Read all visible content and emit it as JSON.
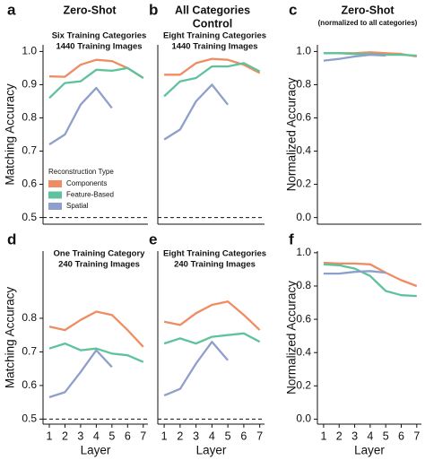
{
  "chart_data": [
    {
      "type": "line",
      "panel": "a",
      "title": [
        "Zero-Shot"
      ],
      "subtitle": [
        "Six Training Categories",
        "1440 Training Images"
      ],
      "ylabel": "Matching Accuracy",
      "x": [
        1,
        2,
        3,
        4,
        5,
        6,
        7
      ],
      "xlim": [
        0.6,
        7.3
      ],
      "ylim": [
        0.48,
        1.02
      ],
      "yticks": [
        0.5,
        0.6,
        0.7,
        0.8,
        0.9,
        {
          "value": 1.0,
          "label": "1.0"
        }
      ],
      "reference_line": 0.5,
      "legend_title": "Reconstruction Type",
      "legend": "center-left",
      "series": [
        {
          "name": "Components",
          "color": "#f08c62",
          "values": [
            0.925,
            0.924,
            0.96,
            0.975,
            0.971,
            0.95,
            0.92
          ]
        },
        {
          "name": "Feature-Based",
          "color": "#5ec39c",
          "values": [
            0.86,
            0.905,
            0.91,
            0.945,
            0.942,
            0.95,
            0.92
          ]
        },
        {
          "name": "Spatial",
          "color": "#8e9fcb",
          "values": [
            0.72,
            0.75,
            0.84,
            0.89,
            0.83,
            null,
            null
          ]
        }
      ]
    },
    {
      "type": "line",
      "panel": "b",
      "title": [
        "All Categories",
        "Control"
      ],
      "subtitle": [
        "Eight Training Categories",
        "1440 Training Images"
      ],
      "x": [
        1,
        2,
        3,
        4,
        5,
        6,
        7
      ],
      "xlim": [
        0.6,
        7.3
      ],
      "ylim": [
        0.48,
        1.02
      ],
      "reference_line": 0.5,
      "series": [
        {
          "color": "#f08c62",
          "values": [
            0.93,
            0.93,
            0.965,
            0.978,
            0.975,
            0.96,
            0.935
          ]
        },
        {
          "color": "#5ec39c",
          "values": [
            0.865,
            0.91,
            0.92,
            0.955,
            0.955,
            0.965,
            0.94
          ]
        },
        {
          "color": "#8e9fcb",
          "values": [
            0.735,
            0.765,
            0.85,
            0.9,
            0.84,
            null,
            null
          ]
        }
      ]
    },
    {
      "type": "line",
      "panel": "c",
      "title": [
        "Zero-Shot"
      ],
      "subtitle": [
        "(normalized to all categories)"
      ],
      "ylabel": "Normalized Accuracy",
      "x": [
        1,
        2,
        3,
        4,
        5,
        6,
        7
      ],
      "xlim": [
        0.6,
        7.3
      ],
      "ylim": [
        -0.04,
        1.04
      ],
      "yticks": [
        {
          "value": 0.0,
          "label": "0.0"
        },
        0.2,
        0.4,
        0.6,
        0.8,
        {
          "value": 1.0,
          "label": "1.0"
        }
      ],
      "series": [
        {
          "color": "#f08c62",
          "values": [
            0.99,
            0.99,
            0.99,
            0.995,
            0.99,
            0.985,
            0.97
          ]
        },
        {
          "color": "#5ec39c",
          "values": [
            0.99,
            0.99,
            0.985,
            0.985,
            0.98,
            0.98,
            0.975
          ]
        },
        {
          "color": "#8e9fcb",
          "values": [
            0.945,
            0.955,
            0.97,
            0.98,
            0.975,
            null,
            null
          ]
        }
      ]
    },
    {
      "type": "line",
      "panel": "d",
      "subtitle": [
        "One Training Category",
        "240 Training Images"
      ],
      "ylabel": "Matching Accuracy",
      "xlabel": "Layer",
      "x": [
        1,
        2,
        3,
        4,
        5,
        6,
        7
      ],
      "xlim": [
        0.6,
        7.3
      ],
      "ylim": [
        0.485,
        1.0
      ],
      "xticks": [
        1,
        2,
        3,
        4,
        5,
        6,
        7
      ],
      "yticks": [
        0.5,
        0.6,
        0.7,
        0.8
      ],
      "reference_line": 0.5,
      "series": [
        {
          "color": "#f08c62",
          "values": [
            0.775,
            0.765,
            0.795,
            0.82,
            0.81,
            0.765,
            0.715
          ]
        },
        {
          "color": "#5ec39c",
          "values": [
            0.71,
            0.725,
            0.705,
            0.71,
            0.695,
            0.69,
            0.67
          ]
        },
        {
          "color": "#8e9fcb",
          "values": [
            0.565,
            0.58,
            0.64,
            0.705,
            0.655,
            null,
            null
          ]
        }
      ]
    },
    {
      "type": "line",
      "panel": "e",
      "subtitle": [
        "Eight Training Categories",
        "240 Training Images"
      ],
      "xlabel": "Layer",
      "x": [
        1,
        2,
        3,
        4,
        5,
        6,
        7
      ],
      "xlim": [
        0.6,
        7.3
      ],
      "ylim": [
        0.485,
        1.0
      ],
      "xticks": [
        1,
        2,
        3,
        4,
        5,
        6,
        7
      ],
      "reference_line": 0.5,
      "series": [
        {
          "color": "#f08c62",
          "values": [
            0.79,
            0.78,
            0.815,
            0.84,
            0.85,
            0.81,
            0.765
          ]
        },
        {
          "color": "#5ec39c",
          "values": [
            0.725,
            0.74,
            0.725,
            0.745,
            0.75,
            0.755,
            0.73
          ]
        },
        {
          "color": "#8e9fcb",
          "values": [
            0.57,
            0.59,
            0.665,
            0.73,
            0.675,
            null,
            null
          ]
        }
      ]
    },
    {
      "type": "line",
      "panel": "f",
      "ylabel": "Normalized Accuracy",
      "xlabel": "Layer",
      "x": [
        1,
        2,
        3,
        4,
        5,
        6,
        7
      ],
      "xlim": [
        0.6,
        7.3
      ],
      "ylim": [
        -0.03,
        1.01
      ],
      "xticks": [
        1,
        2,
        3,
        4,
        5,
        6,
        7
      ],
      "yticks": [
        {
          "value": 0.0,
          "label": "0.0"
        },
        0.2,
        0.4,
        0.6,
        0.8,
        {
          "value": 1.0,
          "label": "1.0"
        }
      ],
      "series": [
        {
          "color": "#f08c62",
          "values": [
            0.94,
            0.935,
            0.935,
            0.93,
            0.88,
            0.835,
            0.8
          ]
        },
        {
          "color": "#5ec39c",
          "values": [
            0.93,
            0.925,
            0.905,
            0.86,
            0.77,
            0.745,
            0.74
          ]
        },
        {
          "color": "#8e9fcb",
          "values": [
            0.875,
            0.875,
            0.885,
            0.89,
            0.88,
            null,
            null
          ]
        }
      ]
    }
  ]
}
